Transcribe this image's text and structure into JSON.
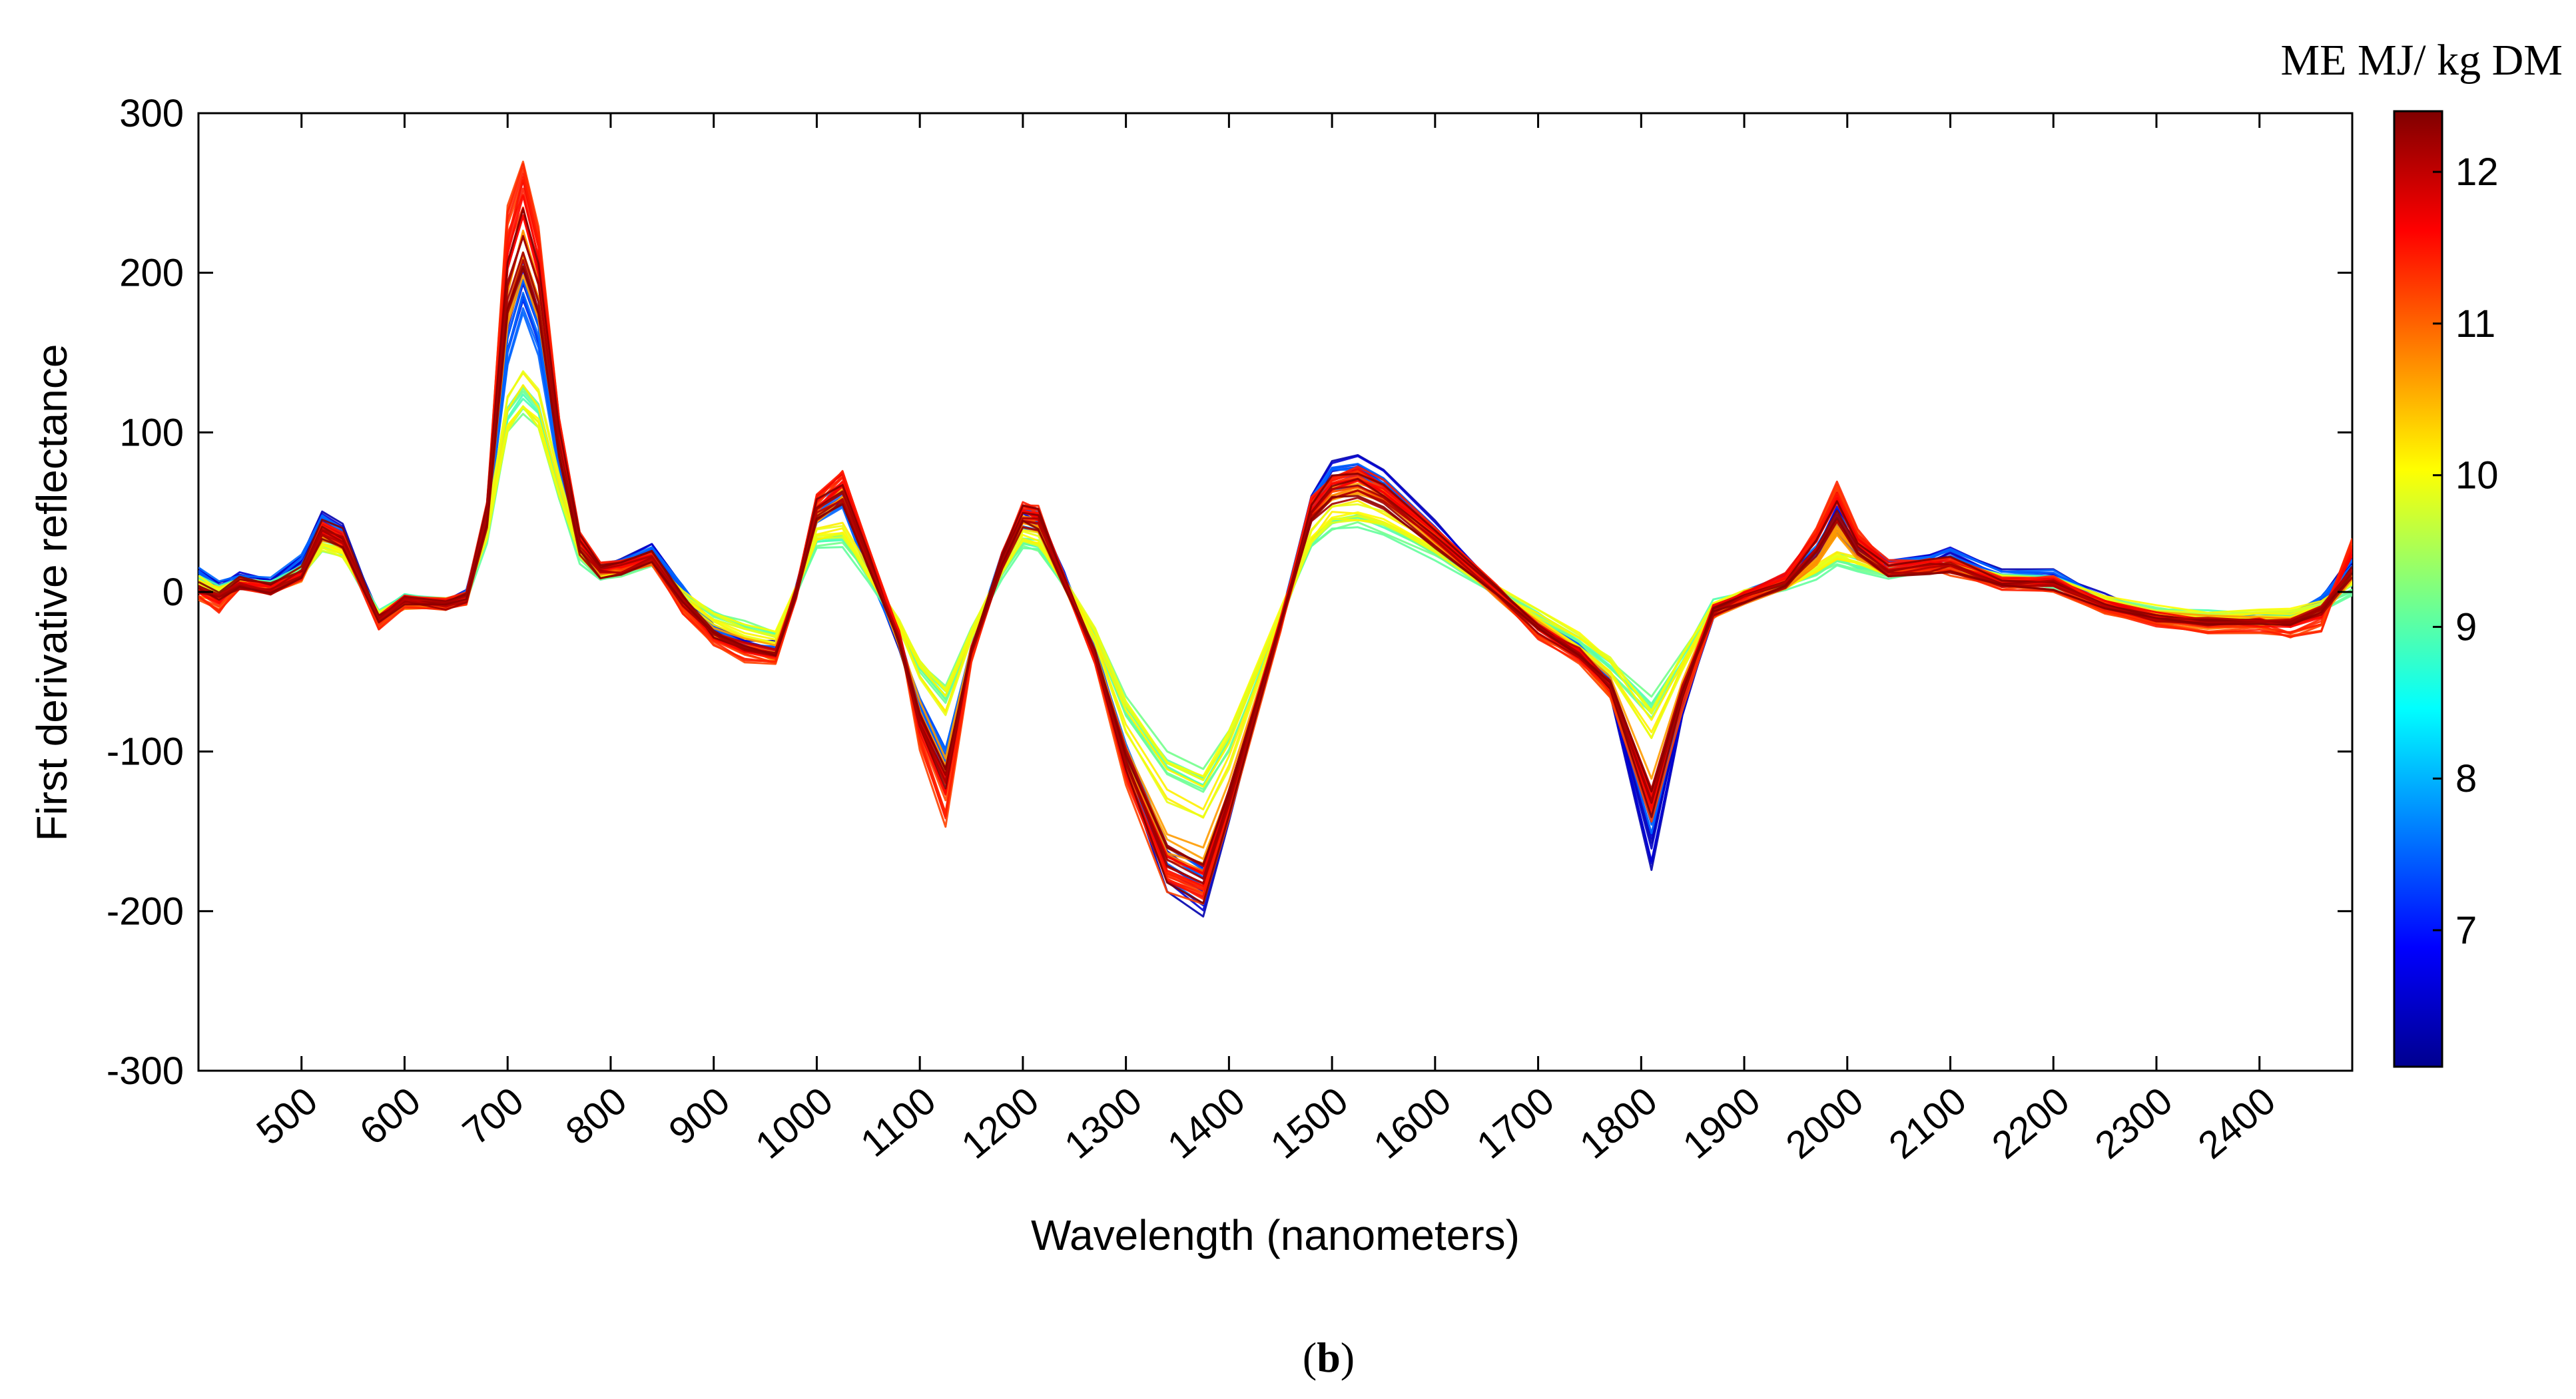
{
  "chart_data": {
    "type": "line",
    "title": "",
    "xlabel": "Wavelength (nanometers)",
    "ylabel": "First derivative reflectance",
    "xlim": [
      400,
      2490
    ],
    "ylim": [
      -300,
      300
    ],
    "x_ticks": [
      500,
      600,
      700,
      800,
      900,
      1000,
      1100,
      1200,
      1300,
      1400,
      1500,
      1600,
      1700,
      1800,
      1900,
      2000,
      2100,
      2200,
      2300,
      2400
    ],
    "x_tick_labels": [
      "500",
      "600",
      "700",
      "800",
      "900",
      "1000",
      "1100",
      "1200",
      "1300",
      "1400",
      "1500",
      "1600",
      "1700",
      "1800",
      "1900",
      "2000",
      "2100",
      "2200",
      "2300",
      "2400"
    ],
    "y_ticks": [
      -300,
      -200,
      -100,
      0,
      100,
      200,
      300
    ],
    "y_tick_labels": [
      "-300",
      "-200",
      "-100",
      "0",
      "100",
      "200",
      "300"
    ],
    "grid": false,
    "colorbar": {
      "title": "ME MJ/ kg DM",
      "range": [
        6.1,
        12.4
      ],
      "ticks": [
        7,
        8,
        9,
        10,
        11,
        12
      ],
      "tick_labels": [
        "7",
        "8",
        "9",
        "10",
        "11",
        "12"
      ],
      "colormap": "jet"
    },
    "caption_letter": "b",
    "caption_open": "(",
    "caption_close": ")",
    "x": [
      400,
      420,
      440,
      470,
      500,
      520,
      540,
      575,
      600,
      640,
      660,
      680,
      700,
      715,
      730,
      750,
      770,
      790,
      810,
      840,
      870,
      900,
      930,
      960,
      980,
      1000,
      1025,
      1050,
      1080,
      1100,
      1125,
      1150,
      1180,
      1200,
      1215,
      1240,
      1270,
      1300,
      1340,
      1375,
      1400,
      1450,
      1480,
      1500,
      1525,
      1550,
      1600,
      1660,
      1700,
      1740,
      1770,
      1810,
      1840,
      1870,
      1900,
      1940,
      1970,
      1990,
      2010,
      2040,
      2080,
      2100,
      2150,
      2200,
      2250,
      2300,
      2350,
      2400,
      2430,
      2460,
      2490
    ],
    "series": [
      {
        "name": "ME 6.5",
        "me": 6.5,
        "values": [
          12,
          3,
          8,
          5,
          20,
          45,
          38,
          -18,
          -5,
          -8,
          -3,
          50,
          165,
          200,
          170,
          85,
          30,
          14,
          16,
          26,
          0,
          -25,
          -35,
          -38,
          0,
          50,
          60,
          18,
          -35,
          -80,
          -115,
          -40,
          20,
          48,
          45,
          10,
          -40,
          -110,
          -180,
          -195,
          -140,
          -20,
          55,
          78,
          80,
          70,
          40,
          0,
          -20,
          -40,
          -65,
          -168,
          -75,
          -15,
          -4,
          6,
          25,
          48,
          30,
          16,
          20,
          24,
          10,
          10,
          -5,
          -18,
          -20,
          -20,
          -18,
          -5,
          20
        ]
      },
      {
        "name": "ME 7.5",
        "me": 7.5,
        "values": [
          10,
          2,
          8,
          4,
          18,
          42,
          35,
          -17,
          -5,
          -7,
          -3,
          45,
          150,
          185,
          158,
          80,
          28,
          13,
          15,
          24,
          0,
          -23,
          -33,
          -36,
          0,
          48,
          58,
          15,
          -30,
          -70,
          -100,
          -35,
          20,
          45,
          43,
          8,
          -35,
          -100,
          -165,
          -180,
          -130,
          -18,
          50,
          70,
          72,
          64,
          36,
          0,
          -18,
          -35,
          -55,
          -140,
          -65,
          -12,
          -3,
          6,
          22,
          42,
          27,
          15,
          18,
          22,
          9,
          9,
          -6,
          -16,
          -18,
          -18,
          -17,
          -6,
          15
        ]
      },
      {
        "name": "ME 9.0",
        "me": 9.0,
        "values": [
          8,
          1,
          7,
          4,
          14,
          30,
          26,
          -14,
          -4,
          -6,
          -2,
          35,
          105,
          118,
          108,
          62,
          22,
          10,
          12,
          18,
          -2,
          -14,
          -20,
          -25,
          0,
          30,
          32,
          10,
          -20,
          -45,
          -62,
          -25,
          12,
          30,
          28,
          5,
          -25,
          -70,
          -105,
          -115,
          -90,
          -15,
          30,
          42,
          45,
          40,
          24,
          0,
          -15,
          -30,
          -45,
          -70,
          -40,
          -8,
          -2,
          4,
          12,
          20,
          16,
          12,
          14,
          16,
          8,
          6,
          -5,
          -12,
          -14,
          -14,
          -13,
          -8,
          2
        ]
      },
      {
        "name": "ME 10.0",
        "me": 10.0,
        "values": [
          6,
          0,
          6,
          3,
          12,
          28,
          24,
          -15,
          -5,
          -7,
          -3,
          38,
          110,
          125,
          114,
          65,
          24,
          11,
          12,
          20,
          -3,
          -18,
          -26,
          -30,
          0,
          35,
          38,
          12,
          -22,
          -50,
          -70,
          -28,
          14,
          35,
          32,
          6,
          -28,
          -80,
          -120,
          -130,
          -100,
          -16,
          34,
          48,
          50,
          45,
          28,
          0,
          -16,
          -32,
          -48,
          -85,
          -45,
          -10,
          -3,
          4,
          14,
          22,
          18,
          12,
          14,
          16,
          8,
          6,
          -6,
          -14,
          -16,
          -16,
          -15,
          -10,
          5
        ]
      },
      {
        "name": "ME 10.7",
        "me": 10.7,
        "values": [
          2,
          -4,
          5,
          2,
          10,
          35,
          30,
          -17,
          -6,
          -8,
          -4,
          45,
          175,
          210,
          182,
          90,
          32,
          14,
          15,
          22,
          -6,
          -24,
          -32,
          -38,
          0,
          48,
          60,
          20,
          -30,
          -75,
          -110,
          -35,
          20,
          45,
          42,
          6,
          -38,
          -105,
          -160,
          -170,
          -125,
          -20,
          48,
          62,
          66,
          60,
          34,
          0,
          -22,
          -38,
          -58,
          -125,
          -60,
          -12,
          -4,
          6,
          20,
          40,
          24,
          14,
          16,
          18,
          6,
          6,
          -8,
          -16,
          -18,
          -18,
          -18,
          -12,
          12
        ]
      },
      {
        "name": "ME 11.3",
        "me": 11.3,
        "values": [
          -2,
          -10,
          4,
          1,
          8,
          38,
          32,
          -20,
          -6,
          -8,
          -5,
          50,
          225,
          250,
          210,
          100,
          32,
          13,
          14,
          20,
          -10,
          -30,
          -38,
          -42,
          0,
          55,
          70,
          25,
          -25,
          -90,
          -135,
          -40,
          20,
          50,
          47,
          6,
          -40,
          -110,
          -170,
          -180,
          -130,
          -22,
          52,
          65,
          70,
          62,
          35,
          0,
          -25,
          -40,
          -60,
          -130,
          -65,
          -12,
          -4,
          8,
          35,
          62,
          35,
          14,
          16,
          14,
          4,
          4,
          -10,
          -18,
          -22,
          -22,
          -25,
          -20,
          30
        ]
      },
      {
        "name": "ME 11.6",
        "me": 11.6,
        "values": [
          0,
          -6,
          4,
          1,
          9,
          36,
          31,
          -18,
          -6,
          -8,
          -4,
          48,
          200,
          235,
          198,
          95,
          30,
          13,
          14,
          21,
          -8,
          -28,
          -36,
          -40,
          0,
          52,
          65,
          22,
          -28,
          -82,
          -120,
          -38,
          20,
          48,
          45,
          6,
          -40,
          -108,
          -168,
          -178,
          -128,
          -20,
          50,
          63,
          68,
          61,
          34,
          0,
          -23,
          -39,
          -59,
          -128,
          -62,
          -12,
          -4,
          7,
          30,
          55,
          30,
          14,
          16,
          16,
          5,
          5,
          -9,
          -17,
          -20,
          -20,
          -22,
          -16,
          22
        ]
      },
      {
        "name": "ME 12.2",
        "me": 12.2,
        "values": [
          4,
          -2,
          6,
          3,
          12,
          40,
          34,
          -16,
          -5,
          -7,
          -3,
          48,
          190,
          220,
          188,
          92,
          30,
          14,
          16,
          24,
          -4,
          -26,
          -34,
          -38,
          0,
          52,
          62,
          20,
          -30,
          -80,
          -115,
          -36,
          20,
          48,
          45,
          8,
          -38,
          -105,
          -168,
          -180,
          -130,
          -20,
          50,
          64,
          68,
          60,
          34,
          0,
          -22,
          -38,
          -58,
          -130,
          -62,
          -12,
          -4,
          6,
          28,
          50,
          28,
          14,
          16,
          18,
          6,
          6,
          -8,
          -16,
          -18,
          -18,
          -18,
          -10,
          14
        ]
      }
    ]
  }
}
